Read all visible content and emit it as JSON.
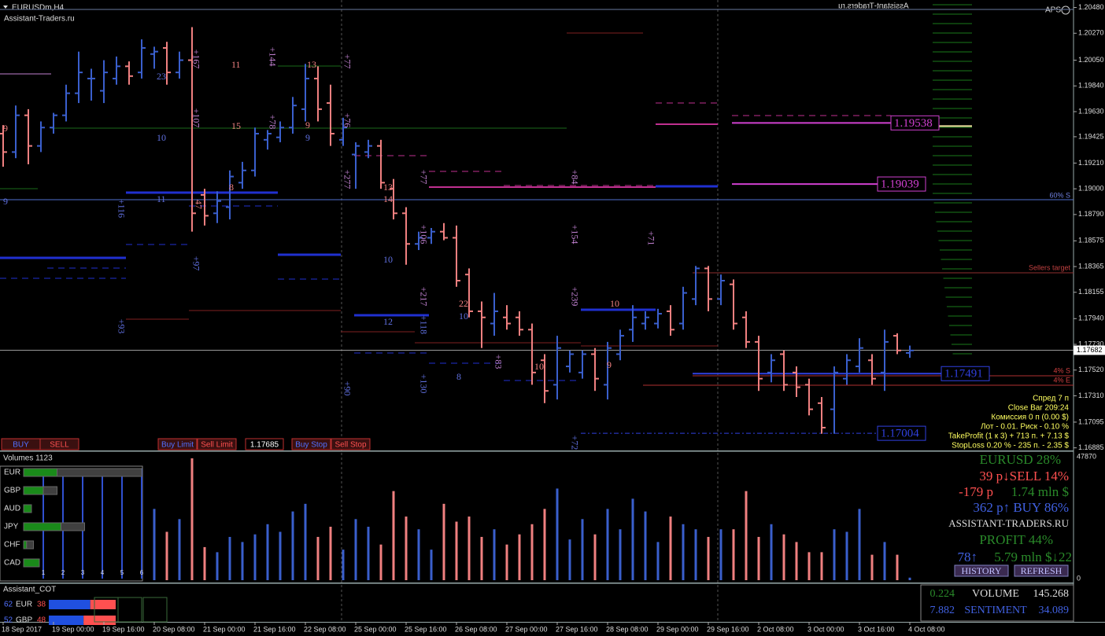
{
  "header": {
    "symbol": "EURUSDm,H4",
    "site": "Assistant-Traders.ru",
    "mirror": "Assistant-Traders.ru",
    "aps": "APS"
  },
  "chart_data": [
    {
      "type": "ohlc",
      "open": [
        1.1945,
        1.193,
        1.196,
        1.1935,
        1.195,
        1.196,
        1.1978,
        1.199,
        1.198,
        1.199,
        1.2,
        1.1995,
        1.201,
        1.2015,
        1.1995,
        1.2005,
        1.1895,
        1.188,
        1.1885,
        1.1905,
        1.1915,
        1.194,
        1.1942,
        1.195,
        1.1965,
        1.199,
        1.197,
        1.194,
        1.1928,
        1.193,
        1.1935,
        1.19,
        1.188,
        1.1855,
        1.186,
        1.1865,
        1.186,
        1.183,
        1.18,
        1.179,
        1.1795,
        1.1795,
        1.1785,
        1.176,
        1.174,
        1.1755,
        1.175,
        1.1765,
        1.174,
        1.1765,
        1.1785,
        1.179,
        1.179,
        1.18,
        1.179,
        1.181,
        1.1835,
        1.181,
        1.1822,
        1.1795,
        1.1775,
        1.175,
        1.1765,
        1.175,
        1.174,
        1.1725,
        1.172,
        1.1745,
        1.1755,
        1.176,
        1.175,
        1.178,
        1.1766
      ],
      "high": [
        1.1952,
        1.1968,
        1.1965,
        1.1955,
        1.1962,
        1.1985,
        1.2012,
        1.1998,
        1.2005,
        1.2008,
        1.2004,
        1.2022,
        1.2016,
        1.202,
        1.2012,
        1.2032,
        1.19,
        1.1898,
        1.1915,
        1.1922,
        1.195,
        1.1948,
        1.1955,
        1.1975,
        1.2002,
        1.2,
        1.1985,
        1.1958,
        1.1938,
        1.194,
        1.194,
        1.1908,
        1.1885,
        1.1865,
        1.1868,
        1.1872,
        1.187,
        1.1835,
        1.1808,
        1.1815,
        1.1805,
        1.18,
        1.179,
        1.1765,
        1.178,
        1.1768,
        1.1768,
        1.177,
        1.1775,
        1.1785,
        1.1805,
        1.18,
        1.1802,
        1.1805,
        1.182,
        1.1837,
        1.1837,
        1.183,
        1.1826,
        1.18,
        1.178,
        1.1765,
        1.1768,
        1.1755,
        1.1745,
        1.173,
        1.1755,
        1.1765,
        1.1778,
        1.1765,
        1.1785,
        1.1782,
        1.1772
      ],
      "low": [
        1.1918,
        1.1925,
        1.192,
        1.193,
        1.1945,
        1.1955,
        1.197,
        1.1972,
        1.197,
        1.1985,
        1.1985,
        1.199,
        1.1998,
        1.1985,
        1.199,
        1.1865,
        1.187,
        1.1872,
        1.1875,
        1.19,
        1.191,
        1.1932,
        1.1938,
        1.1945,
        1.1955,
        1.1955,
        1.1935,
        1.1935,
        1.19,
        1.1925,
        1.19,
        1.1875,
        1.1838,
        1.185,
        1.1855,
        1.1858,
        1.182,
        1.1795,
        1.177,
        1.178,
        1.1785,
        1.178,
        1.174,
        1.1725,
        1.1728,
        1.175,
        1.1745,
        1.1735,
        1.1728,
        1.176,
        1.1775,
        1.1785,
        1.1786,
        1.178,
        1.1785,
        1.1805,
        1.18,
        1.1805,
        1.1785,
        1.177,
        1.1735,
        1.1742,
        1.1735,
        1.173,
        1.1715,
        1.17,
        1.17,
        1.174,
        1.175,
        1.174,
        1.1735,
        1.1765,
        1.1762
      ],
      "close": [
        1.193,
        1.196,
        1.1935,
        1.195,
        1.196,
        1.1978,
        1.1995,
        1.199,
        1.1995,
        1.2,
        1.1992,
        1.2015,
        1.2012,
        1.1995,
        1.2005,
        1.188,
        1.1878,
        1.189,
        1.191,
        1.1915,
        1.1945,
        1.1945,
        1.195,
        1.1968,
        1.199,
        1.1965,
        1.1945,
        1.195,
        1.1935,
        1.1935,
        1.1905,
        1.188,
        1.1855,
        1.186,
        1.1865,
        1.186,
        1.1825,
        1.18,
        1.1795,
        1.18,
        1.179,
        1.1785,
        1.175,
        1.1735,
        1.177,
        1.1765,
        1.1765,
        1.1745,
        1.177,
        1.178,
        1.1795,
        1.1795,
        1.1798,
        1.1785,
        1.1815,
        1.1835,
        1.181,
        1.1825,
        1.179,
        1.1775,
        1.1745,
        1.176,
        1.174,
        1.1738,
        1.172,
        1.1705,
        1.175,
        1.176,
        1.177,
        1.1745,
        1.1775,
        1.1768,
        1.1768
      ],
      "colors": {
        "up": "#3a5fcd",
        "down": "#f08080"
      },
      "ylim": [
        1.1687,
        1.2049
      ],
      "yticks": [
        {
          "value": 1.2048,
          "label": "1.20480"
        },
        {
          "value": 1.2027,
          "label": "1.20270"
        },
        {
          "value": 1.2005,
          "label": "1.20050"
        },
        {
          "value": 1.1984,
          "label": "1.19840"
        },
        {
          "value": 1.1963,
          "label": "1.19630"
        },
        1.19425,
        {
          "value": 1.1921,
          "label": "1.19210"
        },
        {
          "value": 1.19,
          "label": "1.19000"
        },
        {
          "value": 1.1879,
          "label": "1.18790"
        },
        1.18575,
        1.18365,
        1.18155,
        {
          "value": 1.1794,
          "label": "1.17940"
        },
        {
          "value": 1.1773,
          "label": "1.17730"
        },
        {
          "value": 1.1752,
          "label": "1.17520"
        },
        {
          "value": 1.1731,
          "label": "1.17310"
        },
        1.17095,
        1.16885
      ],
      "current_price": 1.17682,
      "price_boxes": [
        1.19538,
        1.19039,
        1.17491,
        1.17004
      ],
      "price_box_colors": [
        "#d040d0",
        "#d040d0",
        "#3040e0",
        "#3040e0"
      ],
      "time_labels": [
        "18 Sep 2017",
        "19 Sep 00:00",
        "19 Sep 16:00",
        "20 Sep 08:00",
        "21 Sep 00:00",
        "21 Sep 16:00",
        "22 Sep 08:00",
        "25 Sep 00:00",
        "25 Sep 16:00",
        "26 Sep 08:00",
        "27 Sep 00:00",
        "27 Sep 16:00",
        "28 Sep 08:00",
        "29 Sep 00:00",
        "29 Sep 16:00",
        "2 Oct 08:00",
        "3 Oct 00:00",
        "3 Oct 16:00",
        "4 Oct 08:00"
      ]
    },
    {
      "type": "bar",
      "title": "Volumes 1123",
      "values": [
        20000,
        15000,
        22000,
        18000,
        14000,
        25000,
        30000,
        12000,
        26000,
        16000,
        20000,
        35000,
        28000,
        19000,
        24000,
        47870,
        13000,
        11000,
        17000,
        15000,
        18000,
        22000,
        19000,
        27000,
        30000,
        17000,
        21000,
        12000,
        24000,
        21000,
        14000,
        35000,
        25000,
        20000,
        12000,
        30000,
        23000,
        25000,
        17000,
        20000,
        14000,
        18000,
        22000,
        28000,
        36000,
        16000,
        24000,
        18000,
        28000,
        20000,
        32000,
        27000,
        15000,
        25000,
        22000,
        20000,
        17000,
        20000,
        20000,
        35000,
        17000,
        22000,
        18000,
        15000,
        11000,
        11000,
        20000,
        19000,
        28000,
        10000,
        15000,
        10000,
        1000
      ],
      "ylim": [
        0,
        47870
      ],
      "yticks": [
        47870,
        0
      ]
    },
    {
      "type": "hbar",
      "categories": [
        "EUR",
        "GBP",
        "AUD",
        "JPY",
        "CHF",
        "CAD"
      ],
      "series": [
        {
          "name": "total",
          "color": "#404040",
          "values": [
            6,
            1.7,
            0.4,
            3.1,
            0.5,
            0.8
          ]
        },
        {
          "name": "strength",
          "color": "#1a8a1a",
          "values": [
            1.7,
            1.0,
            0.4,
            1.9,
            0.15,
            0.8
          ]
        }
      ],
      "xlim": [
        0,
        6
      ],
      "xticks": [
        1,
        2,
        3,
        4,
        5,
        6
      ]
    }
  ],
  "annotations": [
    "+167",
    "23",
    "11",
    "+144",
    "13",
    "+77",
    "+107",
    "15",
    "+78",
    "9",
    "9",
    "+76",
    "10",
    "9",
    "8",
    "11",
    "+116",
    "47",
    "9",
    "+97",
    "+93",
    "+277",
    "13",
    "14",
    "+77",
    "+84",
    "10",
    "+106",
    "+154",
    "+71",
    "+217",
    "22",
    "+239",
    "10",
    "10",
    "12",
    "+118",
    "+83",
    "10",
    "9",
    "8",
    "+90",
    "+130",
    "+72"
  ],
  "level_labels": [
    "60% S",
    "Sellers target",
    "4% S",
    "4% E"
  ],
  "trade_buttons": [
    "BUY",
    "SELL",
    "Buy Limit",
    "Sell Limit",
    "1.17685",
    "Buy Stop",
    "Sell Stop"
  ],
  "info_panel": [
    "Спред 7 п",
    "Close Bar   209:24",
    "Комиссия 0 п (0.00 $)",
    "Лот - 0.01. Риск - 0.10 %",
    "TakeProfit (1 к 3) + 713 п. + 7.13 $",
    "StopLoss 0.20 % - 235 п. - 2.35 $"
  ],
  "sentiment": {
    "pair": "EURUSD 28%",
    "sell": "39 p↓SELL 14%",
    "sell_pips": "-179 p",
    "sell_volume": "1.74 mln $",
    "buy": "362 p↑ BUY 86%",
    "site": "ASSISTANT-TRADERS.RU",
    "profit": "PROFIT 44%",
    "up": "78↑",
    "volume": "5.79 mln $↓22",
    "history": "HISTORY",
    "refresh": "REFRESH"
  },
  "cot": {
    "title": "Assistant_COT",
    "rows": [
      {
        "long": 62,
        "name": "EUR",
        "short": 38
      },
      {
        "long": 52,
        "name": "GBP",
        "short": 48
      }
    ],
    "volume": {
      "left": "0.224",
      "label": "VOLUME",
      "right": "145.268"
    },
    "sentiment": {
      "left": "7.882",
      "label": "SENTIMENT",
      "right": "34.089"
    }
  }
}
